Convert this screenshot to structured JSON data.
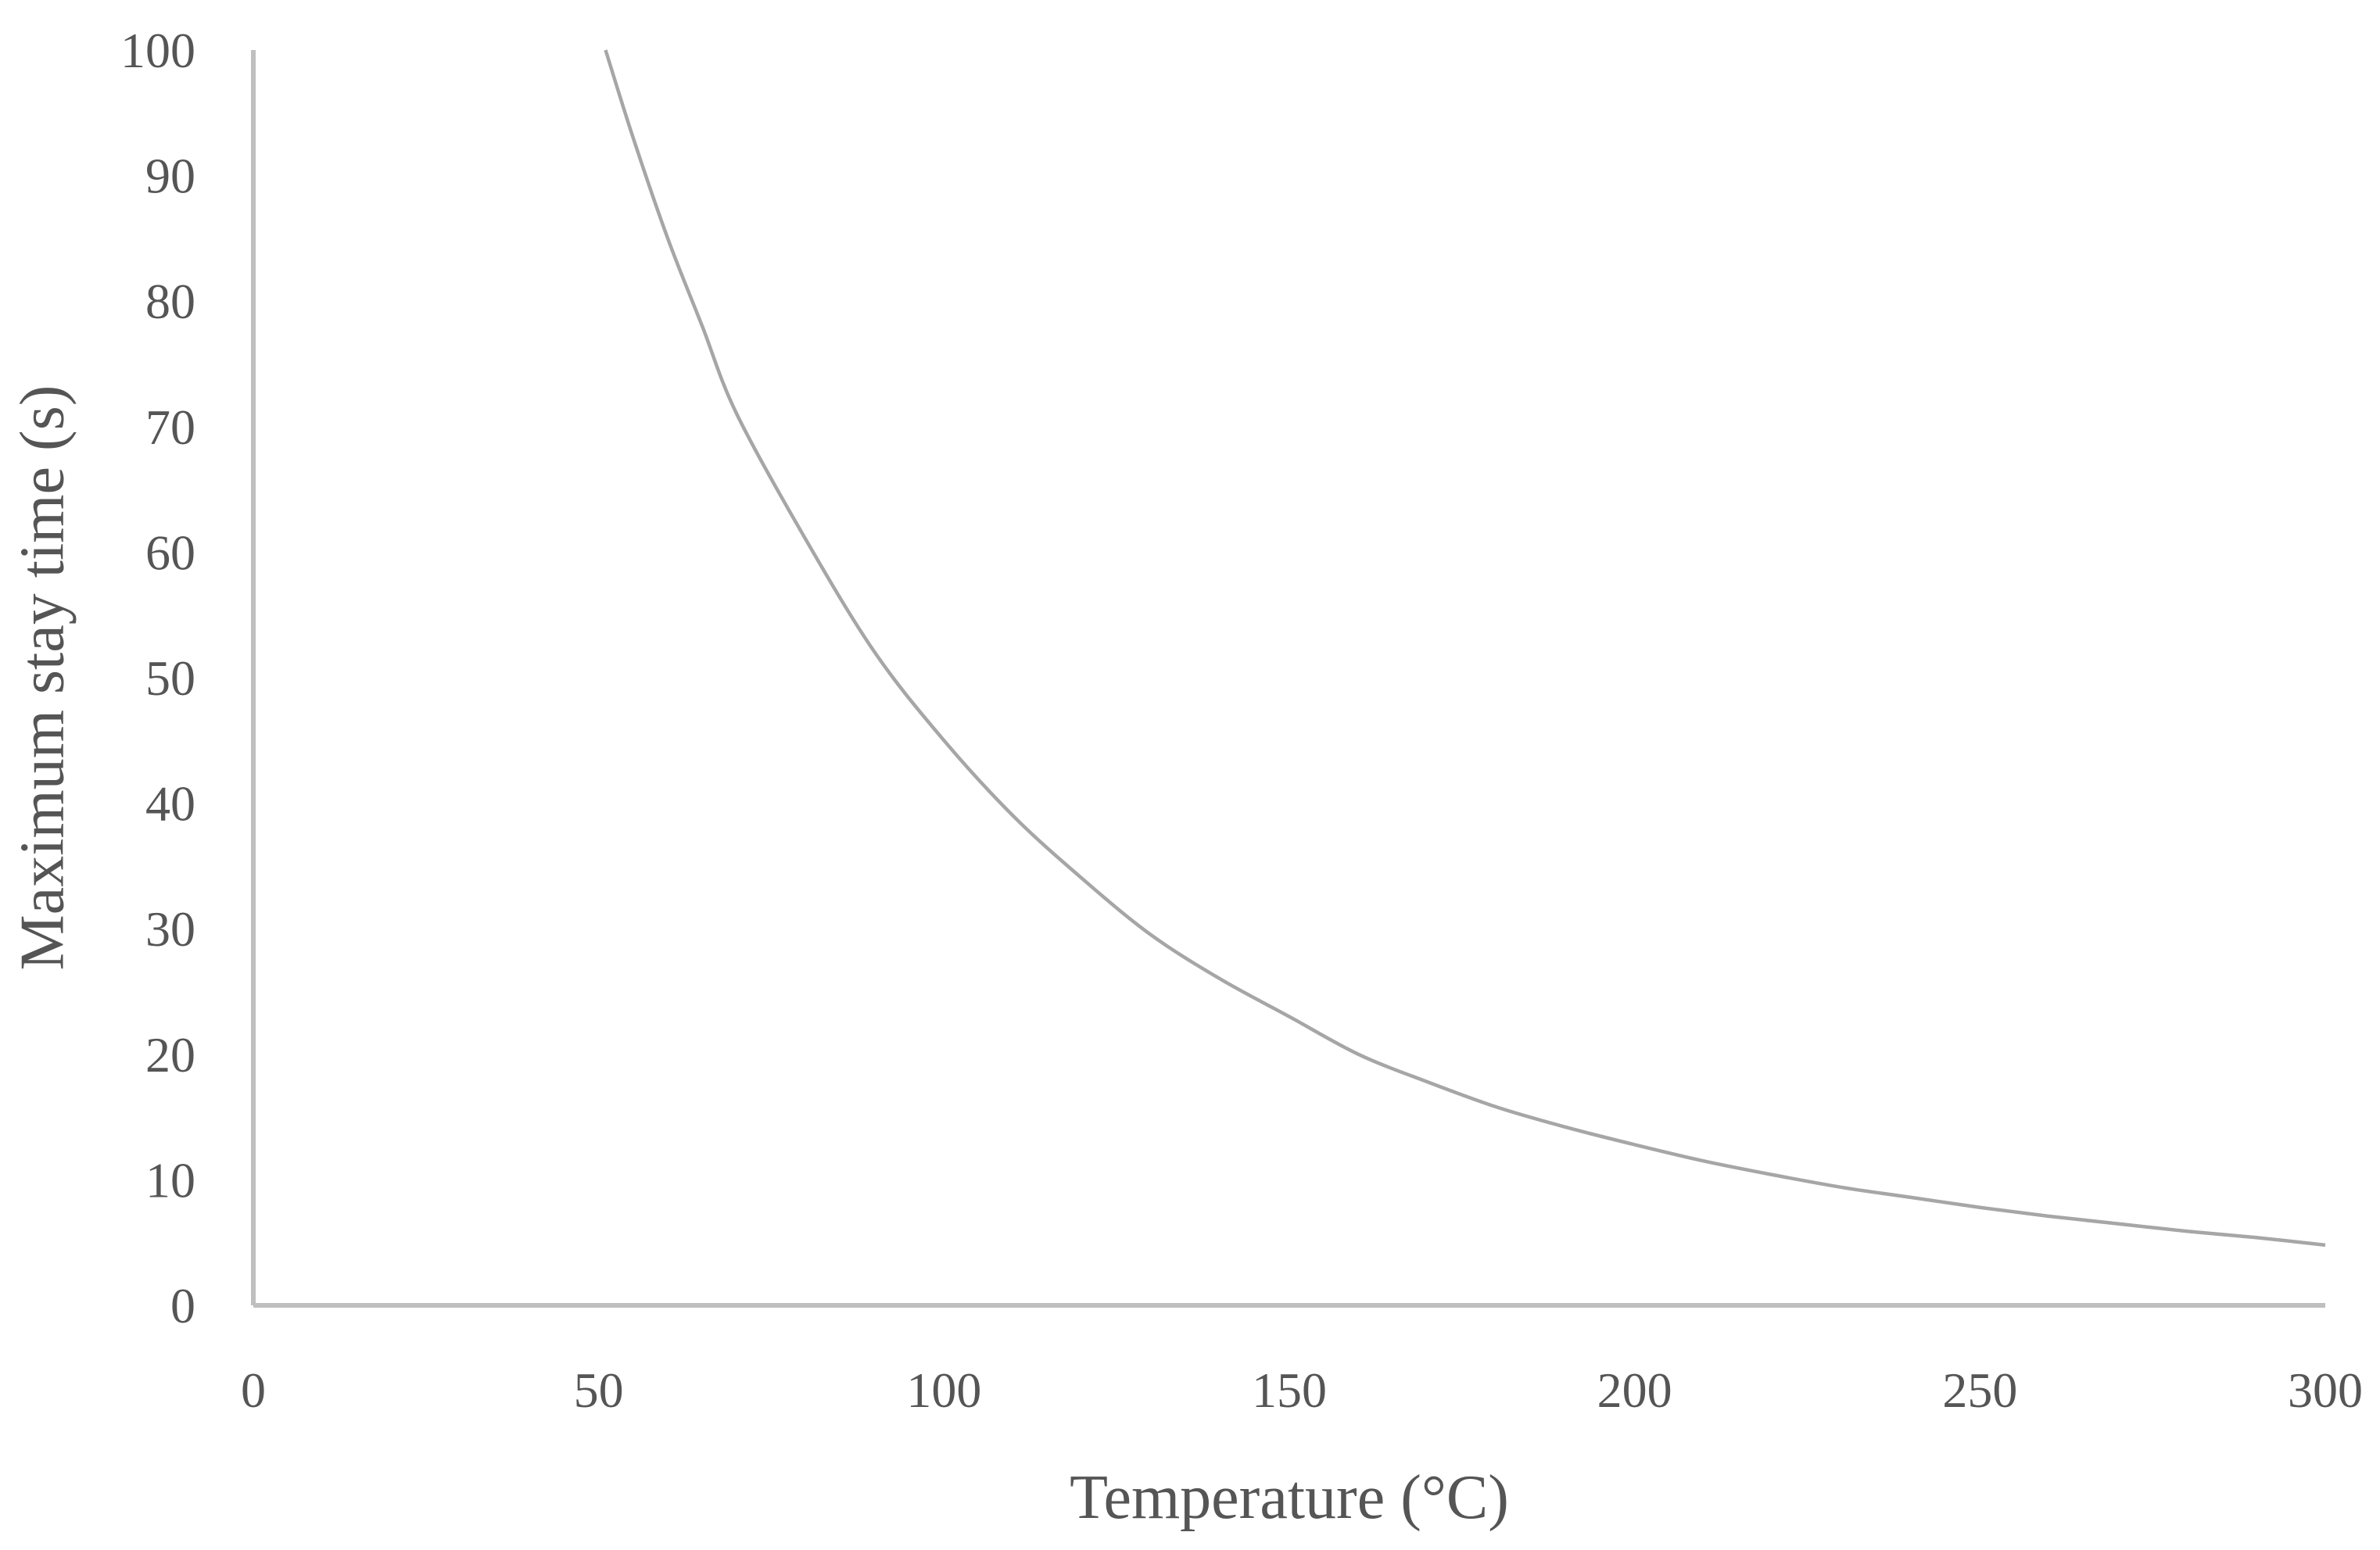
{
  "chart_data": {
    "type": "line",
    "title": "",
    "xlabel": "Temperature (°C)",
    "ylabel": "Maximum stay time (s)",
    "xlim": [
      0,
      300
    ],
    "ylim": [
      0,
      100
    ],
    "x_ticks": [
      "0",
      "50",
      "100",
      "150",
      "200",
      "250",
      "300"
    ],
    "y_ticks": [
      "0",
      "10",
      "20",
      "30",
      "40",
      "50",
      "60",
      "70",
      "80",
      "90",
      "100"
    ],
    "grid": false,
    "legend": "none",
    "series": [
      {
        "color": "#a6a6a6",
        "x": [
          51,
          55,
          60,
          65,
          70,
          80,
          90,
          100,
          110,
          120,
          130,
          140,
          150,
          160,
          170,
          180,
          190,
          200,
          210,
          220,
          230,
          240,
          250,
          260,
          270,
          280,
          290,
          300
        ],
        "y": [
          100,
          93,
          85,
          78,
          71,
          61,
          52,
          45,
          39,
          34,
          29.5,
          26,
          23,
          20,
          17.8,
          15.8,
          14.2,
          12.8,
          11.5,
          10.4,
          9.4,
          8.6,
          7.8,
          7.1,
          6.5,
          5.9,
          5.4,
          4.8
        ]
      }
    ]
  }
}
